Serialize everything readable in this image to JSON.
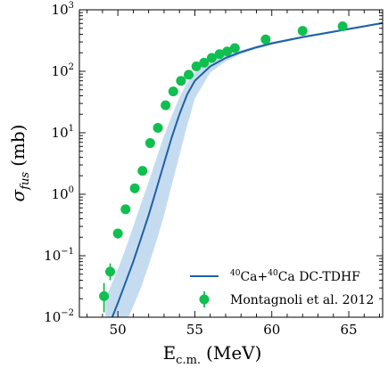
{
  "chart_data": {
    "type": "scatter",
    "xlabel_main": "E",
    "xlabel_sub": "c.m.",
    "xlabel_unit": "(MeV)",
    "ylabel_main": "σ",
    "ylabel_sub": "fus",
    "ylabel_unit": "(mb)",
    "xlim": [
      47.5,
      67.2
    ],
    "ylim_log10": [
      -2,
      3
    ],
    "y_scale": "log",
    "x_ticks": [
      {
        "value": 50,
        "label": "50"
      },
      {
        "value": 55,
        "label": "55"
      },
      {
        "value": 60,
        "label": "60"
      },
      {
        "value": 65,
        "label": "65"
      }
    ],
    "y_ticks": [
      {
        "exp": -2,
        "base": "10",
        "sup": "−2"
      },
      {
        "exp": -1,
        "base": "10",
        "sup": "−1"
      },
      {
        "exp": 0,
        "base": "10",
        "sup": "0"
      },
      {
        "exp": 1,
        "base": "10",
        "sup": "1"
      },
      {
        "exp": 2,
        "base": "10",
        "sup": "2"
      },
      {
        "exp": 3,
        "base": "10",
        "sup": "3"
      }
    ],
    "legend_position": "lower-right",
    "colors": {
      "line": "#1f5fa6",
      "band": "#c5dcf0",
      "points": "#0fbf4f"
    },
    "series": [
      {
        "name_sup1": "40",
        "name_a": "Ca+",
        "name_sup2": "40",
        "name_b": "Ca DC-TDHF",
        "kind": "line",
        "x": [
          49.2,
          49.6,
          50.0,
          50.5,
          51.0,
          51.5,
          52.0,
          52.5,
          53.0,
          53.5,
          54.0,
          54.5,
          55.0,
          56.0,
          57.0,
          58.0,
          59.0,
          60.0,
          62.0,
          64.0,
          66.0,
          67.2
        ],
        "y": [
          0.005,
          0.0095,
          0.017,
          0.037,
          0.08,
          0.19,
          0.46,
          1.2,
          3.2,
          8.5,
          20,
          42,
          70,
          120,
          165,
          205,
          245,
          285,
          360,
          440,
          540,
          610
        ],
        "band_upper": [
          0.02,
          0.035,
          0.06,
          0.13,
          0.3,
          0.7,
          1.6,
          3.8,
          9,
          19,
          38,
          65,
          95,
          140,
          180,
          220,
          260,
          300,
          375,
          460,
          560,
          630
        ],
        "band_lower": [
          0.005,
          0.005,
          0.005,
          0.008,
          0.015,
          0.03,
          0.07,
          0.17,
          0.45,
          1.4,
          4.3,
          13,
          36,
          95,
          145,
          190,
          230,
          270,
          345,
          425,
          520,
          590
        ]
      },
      {
        "name": "Montagnoli et al. 2012",
        "kind": "scatter",
        "x": [
          49.1,
          49.5,
          50.0,
          50.5,
          51.1,
          51.6,
          52.1,
          52.6,
          53.1,
          53.6,
          54.1,
          54.6,
          55.1,
          55.6,
          56.1,
          56.6,
          57.1,
          57.6,
          59.6,
          62.0,
          64.6
        ],
        "y": [
          0.022,
          0.055,
          0.23,
          0.57,
          1.25,
          2.4,
          6.8,
          12,
          28,
          47,
          70,
          88,
          120,
          138,
          165,
          190,
          210,
          238,
          330,
          455,
          540
        ],
        "err_low": [
          0.012,
          0.04,
          0.19,
          0.5,
          1.15,
          2.25,
          6.5,
          11.4,
          27,
          46,
          68,
          86,
          117,
          135,
          162,
          187,
          207,
          235,
          325,
          448,
          532
        ],
        "err_high": [
          0.036,
          0.075,
          0.27,
          0.65,
          1.35,
          2.55,
          7.1,
          12.6,
          29,
          48,
          72,
          90,
          123,
          141,
          168,
          193,
          213,
          241,
          335,
          462,
          548
        ]
      }
    ]
  }
}
